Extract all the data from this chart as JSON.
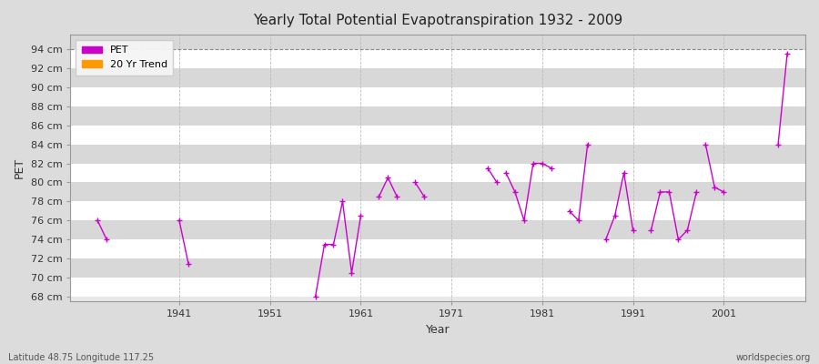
{
  "title": "Yearly Total Potential Evapotranspiration 1932 - 2009",
  "xlabel": "Year",
  "ylabel": "PET",
  "bottom_left_label": "Latitude 48.75 Longitude 117.25",
  "bottom_right_label": "worldspecies.org",
  "ylim": [
    67.5,
    95.5
  ],
  "xlim": [
    1929,
    2010
  ],
  "yticks": [
    68,
    70,
    72,
    74,
    76,
    78,
    80,
    82,
    84,
    86,
    88,
    90,
    92,
    94
  ],
  "xticks": [
    1941,
    1951,
    1961,
    1971,
    1981,
    1991,
    2001
  ],
  "pet_color": "#cc00cc",
  "trend_color": "#ff9900",
  "bg_color": "#dcdcdc",
  "plot_bg_color": "#e8e8e8",
  "stripe_color": "#d8d8d8",
  "grid_major_color": "#ffffff",
  "grid_minor_color": "#e0e0e0",
  "dashed_line_y": 94,
  "segments": [
    {
      "years": [
        1932,
        1933
      ],
      "values": [
        76.0,
        74.0
      ]
    },
    {
      "years": [
        1941,
        1942
      ],
      "values": [
        76.0,
        71.5
      ]
    },
    {
      "years": [
        1956,
        1957,
        1958,
        1959,
        1960,
        1961
      ],
      "values": [
        68.0,
        73.5,
        73.5,
        78.0,
        70.5,
        76.5
      ]
    },
    {
      "years": [
        1963,
        1964,
        1965
      ],
      "values": [
        78.5,
        80.5,
        78.5
      ]
    },
    {
      "years": [
        1967,
        1968
      ],
      "values": [
        80.0,
        78.5
      ]
    },
    {
      "years": [
        1975,
        1976
      ],
      "values": [
        81.5,
        80.0
      ]
    },
    {
      "years": [
        1977,
        1978,
        1979,
        1980,
        1981,
        1982
      ],
      "values": [
        81.0,
        79.0,
        76.0,
        82.0,
        82.0,
        81.5
      ]
    },
    {
      "years": [
        1984,
        1985,
        1986
      ],
      "values": [
        77.0,
        76.0,
        84.0
      ]
    },
    {
      "years": [
        1988,
        1989,
        1990,
        1991
      ],
      "values": [
        74.0,
        76.5,
        81.0,
        75.0
      ]
    },
    {
      "years": [
        1993,
        1994,
        1995,
        1996,
        1997,
        1998
      ],
      "values": [
        75.0,
        79.0,
        79.0,
        74.0,
        75.0,
        79.0
      ]
    },
    {
      "years": [
        1999,
        2000,
        2001
      ],
      "values": [
        84.0,
        79.5,
        79.0
      ]
    },
    {
      "years": [
        2007,
        2008
      ],
      "values": [
        84.0,
        93.5
      ]
    }
  ],
  "isolated_points": [
    {
      "year": 1965,
      "value": 78.5
    },
    {
      "year": 1967,
      "value": 80.0
    },
    {
      "year": 1975,
      "value": 81.5
    }
  ]
}
